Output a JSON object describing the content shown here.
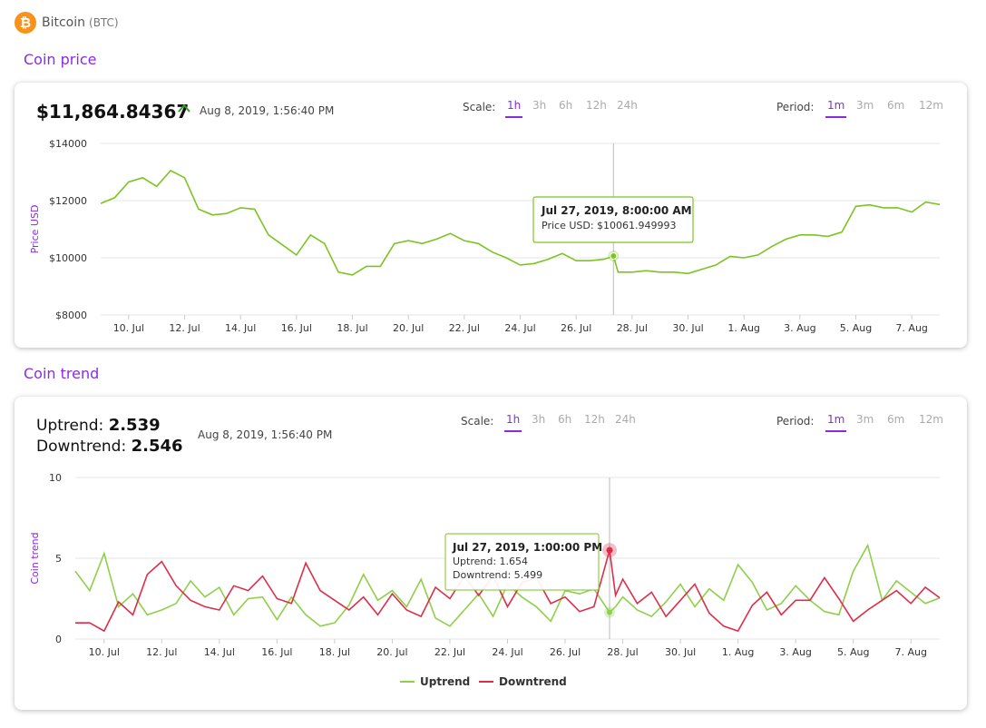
{
  "coin": {
    "name": "Bitcoin",
    "symbol": "(BTC)",
    "icon": "bitcoin-icon",
    "icon_glyph": "₿"
  },
  "price_section": {
    "title": "Coin price",
    "price": "$11,864.84367",
    "timestamp": "Aug 8, 2019, 1:56:40 PM",
    "scale_label": "Scale:",
    "scale_options": [
      "1h",
      "3h",
      "6h",
      "12h",
      "24h"
    ],
    "scale_selected": "1h",
    "period_label": "Period:",
    "period_options": [
      "1m",
      "3m",
      "6m",
      "12m"
    ],
    "period_selected": "1m",
    "tooltip": {
      "title": "Jul 27, 2019, 8:00:00 AM",
      "line1": "Price USD: $10061.949993"
    }
  },
  "trend_section": {
    "title": "Coin trend",
    "uptrend_label": "Uptrend:",
    "uptrend_value": "2.539",
    "downtrend_label": "Downtrend:",
    "downtrend_value": "2.546",
    "timestamp": "Aug 8, 2019, 1:56:40 PM",
    "scale_label": "Scale:",
    "scale_options": [
      "1h",
      "3h",
      "6h",
      "12h",
      "24h"
    ],
    "scale_selected": "1h",
    "period_label": "Period:",
    "period_options": [
      "1m",
      "3m",
      "6m",
      "12m"
    ],
    "period_selected": "1m",
    "tooltip": {
      "title": "Jul 27, 2019, 1:00:00 PM",
      "line1": "Uptrend: 1.654",
      "line2": "Downtrend: 5.499"
    }
  },
  "colors": {
    "accent": "#8a2be2",
    "price_line": "#7cc422",
    "uptrend": "#8fcf4a",
    "downtrend": "#dc2e4a",
    "btc": "#f7931a"
  },
  "chart_data": [
    {
      "type": "line",
      "ylabel": "Price USD",
      "ylim": [
        8000,
        14000
      ],
      "yticks": [
        8000,
        10000,
        12000,
        14000
      ],
      "ytick_labels": [
        "$8000",
        "$10000",
        "$12000",
        "$14000"
      ],
      "xlim": [
        "2019-07-09",
        "2019-08-08"
      ],
      "xtick_labels": [
        "10. Jul",
        "12. Jul",
        "14. Jul",
        "16. Jul",
        "18. Jul",
        "20. Jul",
        "22. Jul",
        "24. Jul",
        "26. Jul",
        "28. Jul",
        "30. Jul",
        "1. Aug",
        "3. Aug",
        "5. Aug",
        "7. Aug"
      ],
      "grid": true,
      "series": [
        {
          "name": "Price USD",
          "x": [
            "2019-07-09",
            "2019-07-09T12:00",
            "2019-07-10",
            "2019-07-10T12:00",
            "2019-07-11",
            "2019-07-11T12:00",
            "2019-07-12",
            "2019-07-12T12:00",
            "2019-07-13",
            "2019-07-13T12:00",
            "2019-07-14",
            "2019-07-14T12:00",
            "2019-07-15",
            "2019-07-15T12:00",
            "2019-07-16",
            "2019-07-16T12:00",
            "2019-07-17",
            "2019-07-17T12:00",
            "2019-07-18",
            "2019-07-18T12:00",
            "2019-07-19",
            "2019-07-19T12:00",
            "2019-07-20",
            "2019-07-20T12:00",
            "2019-07-21",
            "2019-07-21T12:00",
            "2019-07-22",
            "2019-07-22T12:00",
            "2019-07-23",
            "2019-07-23T12:00",
            "2019-07-24",
            "2019-07-24T12:00",
            "2019-07-25",
            "2019-07-25T12:00",
            "2019-07-26",
            "2019-07-26T12:00",
            "2019-07-27",
            "2019-07-27T08:00",
            "2019-07-27T12:00",
            "2019-07-28",
            "2019-07-28T12:00",
            "2019-07-29",
            "2019-07-29T12:00",
            "2019-07-30",
            "2019-07-30T12:00",
            "2019-07-31",
            "2019-07-31T12:00",
            "2019-08-01",
            "2019-08-01T12:00",
            "2019-08-02",
            "2019-08-02T12:00",
            "2019-08-03",
            "2019-08-03T12:00",
            "2019-08-04",
            "2019-08-04T12:00",
            "2019-08-05",
            "2019-08-05T12:00",
            "2019-08-06",
            "2019-08-06T12:00",
            "2019-08-07",
            "2019-08-07T12:00",
            "2019-08-08"
          ],
          "y": [
            11900,
            12100,
            12650,
            12800,
            12500,
            13050,
            12800,
            11700,
            11500,
            11550,
            11750,
            11700,
            10800,
            10450,
            10100,
            10800,
            10500,
            9500,
            9400,
            9700,
            9700,
            10500,
            10600,
            10500,
            10650,
            10850,
            10600,
            10500,
            10200,
            10000,
            9750,
            9800,
            9950,
            10150,
            9900,
            9900,
            9950,
            10062,
            9500,
            9500,
            9550,
            9500,
            9500,
            9450,
            9600,
            9750,
            10050,
            10000,
            10100,
            10400,
            10650,
            10800,
            10800,
            10750,
            10900,
            11800,
            11850,
            11750,
            11750,
            11600,
            11950,
            11865
          ]
        }
      ],
      "tooltip_point": {
        "x": "2019-07-27T08:00",
        "y": 10061.949993
      }
    },
    {
      "type": "line",
      "ylabel": "Coin trend",
      "ylim": [
        0,
        10
      ],
      "yticks": [
        0,
        5,
        10
      ],
      "ytick_labels": [
        "0",
        "5",
        "10"
      ],
      "xlim": [
        "2019-07-09",
        "2019-08-08"
      ],
      "xtick_labels": [
        "10. Jul",
        "12. Jul",
        "14. Jul",
        "16. Jul",
        "18. Jul",
        "20. Jul",
        "22. Jul",
        "24. Jul",
        "26. Jul",
        "28. Jul",
        "30. Jul",
        "1. Aug",
        "3. Aug",
        "5. Aug",
        "7. Aug"
      ],
      "grid": true,
      "legend": "bottom-center",
      "series": [
        {
          "name": "Uptrend",
          "x": [
            "2019-07-09",
            "2019-07-09T12:00",
            "2019-07-10",
            "2019-07-10T12:00",
            "2019-07-11",
            "2019-07-11T12:00",
            "2019-07-12",
            "2019-07-12T12:00",
            "2019-07-13",
            "2019-07-13T12:00",
            "2019-07-14",
            "2019-07-14T12:00",
            "2019-07-15",
            "2019-07-15T12:00",
            "2019-07-16",
            "2019-07-16T12:00",
            "2019-07-17",
            "2019-07-17T12:00",
            "2019-07-18",
            "2019-07-18T12:00",
            "2019-07-19",
            "2019-07-19T12:00",
            "2019-07-20",
            "2019-07-20T12:00",
            "2019-07-21",
            "2019-07-21T12:00",
            "2019-07-22",
            "2019-07-22T12:00",
            "2019-07-23",
            "2019-07-23T12:00",
            "2019-07-24",
            "2019-07-24T12:00",
            "2019-07-25",
            "2019-07-25T12:00",
            "2019-07-26",
            "2019-07-26T12:00",
            "2019-07-27",
            "2019-07-27T13:00",
            "2019-07-27T18:00",
            "2019-07-28",
            "2019-07-28T12:00",
            "2019-07-29",
            "2019-07-29T12:00",
            "2019-07-30",
            "2019-07-30T12:00",
            "2019-07-31",
            "2019-07-31T12:00",
            "2019-08-01",
            "2019-08-01T12:00",
            "2019-08-02",
            "2019-08-02T12:00",
            "2019-08-03",
            "2019-08-03T12:00",
            "2019-08-04",
            "2019-08-04T12:00",
            "2019-08-05",
            "2019-08-05T12:00",
            "2019-08-06",
            "2019-08-06T12:00",
            "2019-08-07",
            "2019-08-07T12:00",
            "2019-08-08"
          ],
          "y": [
            4.2,
            3.0,
            5.3,
            2.0,
            2.8,
            1.5,
            1.8,
            2.2,
            3.6,
            2.6,
            3.2,
            1.5,
            2.5,
            2.6,
            1.2,
            2.6,
            1.5,
            0.8,
            1.0,
            2.1,
            4.0,
            2.4,
            3.0,
            2.0,
            3.7,
            1.3,
            0.8,
            1.8,
            2.8,
            1.4,
            3.4,
            2.6,
            2.0,
            1.1,
            3.0,
            2.8,
            3.1,
            1.654,
            2.0,
            2.6,
            1.8,
            1.4,
            2.3,
            3.4,
            2.0,
            3.1,
            2.4,
            4.6,
            3.5,
            1.8,
            2.2,
            3.3,
            2.4,
            1.7,
            1.5,
            4.2,
            5.8,
            2.4,
            3.6,
            2.9,
            2.2,
            2.54
          ]
        },
        {
          "name": "Downtrend",
          "x": [
            "2019-07-09",
            "2019-07-09T12:00",
            "2019-07-10",
            "2019-07-10T12:00",
            "2019-07-11",
            "2019-07-11T12:00",
            "2019-07-12",
            "2019-07-12T12:00",
            "2019-07-13",
            "2019-07-13T12:00",
            "2019-07-14",
            "2019-07-14T12:00",
            "2019-07-15",
            "2019-07-15T12:00",
            "2019-07-16",
            "2019-07-16T12:00",
            "2019-07-17",
            "2019-07-17T12:00",
            "2019-07-18",
            "2019-07-18T12:00",
            "2019-07-19",
            "2019-07-19T12:00",
            "2019-07-20",
            "2019-07-20T12:00",
            "2019-07-21",
            "2019-07-21T12:00",
            "2019-07-22",
            "2019-07-22T12:00",
            "2019-07-23",
            "2019-07-23T12:00",
            "2019-07-24",
            "2019-07-24T12:00",
            "2019-07-25",
            "2019-07-25T12:00",
            "2019-07-26",
            "2019-07-26T12:00",
            "2019-07-27",
            "2019-07-27T13:00",
            "2019-07-27T18:00",
            "2019-07-28",
            "2019-07-28T12:00",
            "2019-07-29",
            "2019-07-29T12:00",
            "2019-07-30",
            "2019-07-30T12:00",
            "2019-07-31",
            "2019-07-31T12:00",
            "2019-08-01",
            "2019-08-01T12:00",
            "2019-08-02",
            "2019-08-02T12:00",
            "2019-08-03",
            "2019-08-03T12:00",
            "2019-08-04",
            "2019-08-04T12:00",
            "2019-08-05",
            "2019-08-05T12:00",
            "2019-08-06",
            "2019-08-06T12:00",
            "2019-08-07",
            "2019-08-07T12:00",
            "2019-08-08"
          ],
          "y": [
            1.0,
            1.0,
            0.5,
            2.3,
            1.5,
            4.0,
            4.8,
            3.3,
            2.4,
            2.0,
            1.8,
            3.3,
            3.0,
            3.9,
            2.5,
            2.2,
            4.7,
            3.0,
            2.4,
            1.8,
            2.6,
            1.5,
            2.8,
            1.8,
            1.4,
            3.2,
            2.5,
            3.9,
            2.7,
            3.9,
            2.0,
            3.5,
            3.8,
            2.2,
            2.6,
            1.7,
            2.0,
            5.499,
            2.7,
            3.7,
            2.2,
            2.9,
            1.4,
            2.4,
            3.4,
            1.6,
            0.8,
            0.5,
            2.1,
            2.9,
            1.5,
            2.4,
            2.4,
            3.8,
            2.5,
            1.1,
            1.8,
            2.4,
            3.0,
            2.2,
            3.2,
            2.55
          ]
        }
      ],
      "tooltip_point": {
        "x": "2019-07-27T13:00",
        "uptrend": 1.654,
        "downtrend": 5.499
      }
    }
  ]
}
